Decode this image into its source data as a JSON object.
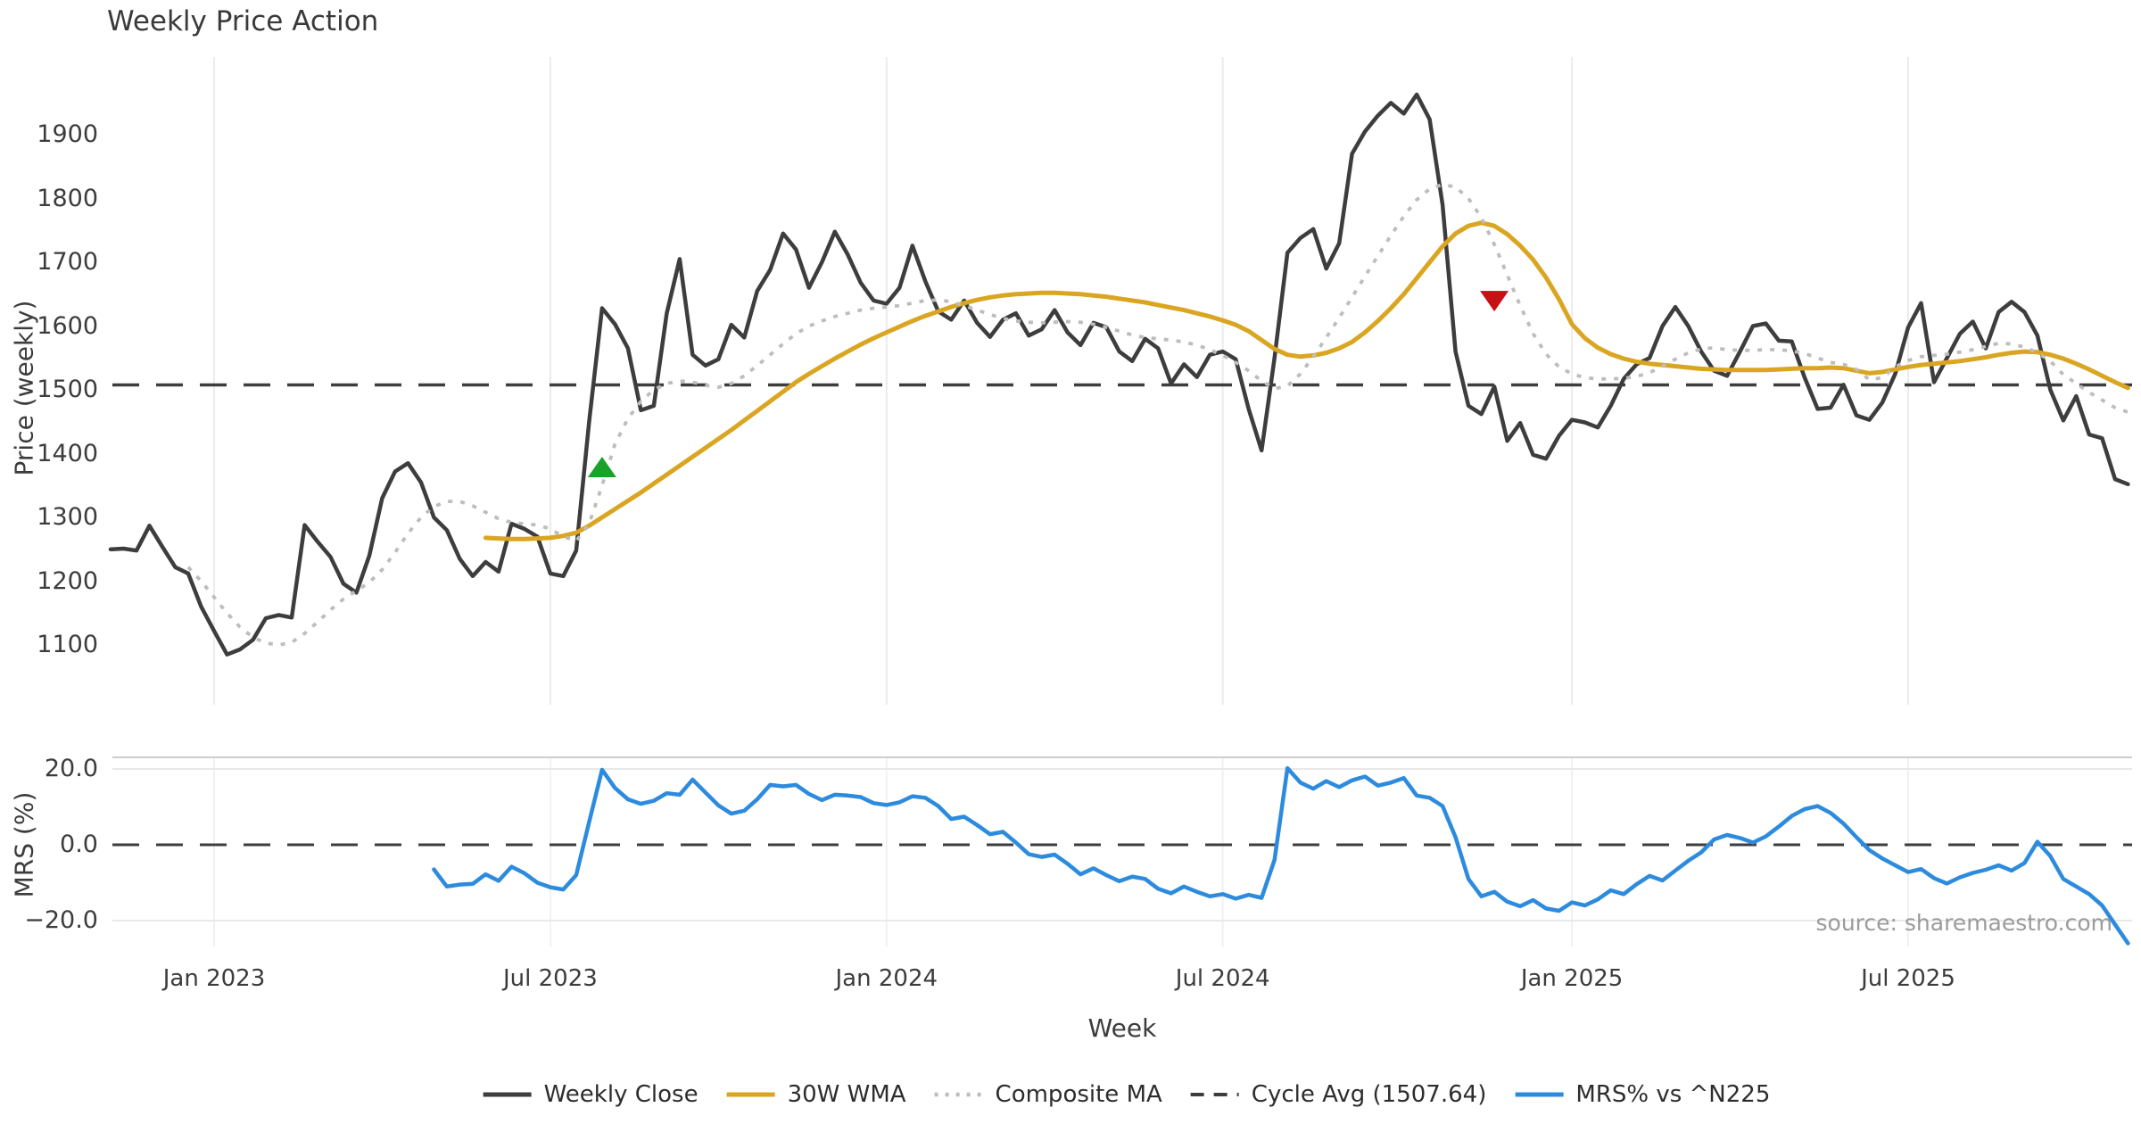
{
  "title": "Weekly Price Action",
  "source": "source: sharemaestro.com",
  "chart_data": {
    "type": "line",
    "title": "Weekly Price Action",
    "xlabel": "Week",
    "x": {
      "start_date": "2022-11-07",
      "freq": "weekly",
      "n_points": 157,
      "ticks": [
        {
          "week": 8,
          "label": "Jan 2023"
        },
        {
          "week": 34,
          "label": "Jul 2023"
        },
        {
          "week": 60,
          "label": "Jan 2024"
        },
        {
          "week": 86,
          "label": "Jul 2024"
        },
        {
          "week": 113,
          "label": "Jan 2025"
        },
        {
          "week": 139,
          "label": "Jul 2025"
        }
      ]
    },
    "panels": [
      {
        "id": "price",
        "ylabel": "Price (weekly)",
        "yticks": [
          1900,
          1800,
          1700,
          1600,
          1500,
          1400,
          1300,
          1200,
          1100
        ],
        "ytick_labels": [
          "1900",
          "1800",
          "1700",
          "1600",
          "1500",
          "1400",
          "1300",
          "1200",
          "1100"
        ],
        "ylim": [
          990,
          2030
        ],
        "grid": "vertical"
      },
      {
        "id": "mrs",
        "ylabel": "MRS (%)",
        "yticks": [
          20.0,
          0.0,
          -20.0
        ],
        "ytick_labels": [
          "20.0",
          "0.0",
          "−20.0"
        ],
        "ylim": [
          -26.5,
          23.5
        ],
        "grid": "vertical+horizontal"
      }
    ],
    "series": [
      {
        "name": "Weekly Close",
        "panel": "price",
        "color": "#3d3d3d",
        "style": "solid",
        "width": 4.5,
        "values": [
          1250,
          1251,
          1248,
          1287,
          1254,
          1222,
          1212,
          1160,
          1122,
          1085,
          1093,
          1108,
          1142,
          1147,
          1143,
          1288,
          1262,
          1238,
          1196,
          1182,
          1240,
          1330,
          1372,
          1385,
          1355,
          1300,
          1280,
          1235,
          1208,
          1230,
          1215,
          1290,
          1282,
          1270,
          1212,
          1208,
          1248,
          1450,
          1628,
          1603,
          1565,
          1468,
          1475,
          1620,
          1705,
          1555,
          1538,
          1548,
          1602,
          1582,
          1655,
          1688,
          1745,
          1720,
          1660,
          1700,
          1748,
          1712,
          1668,
          1640,
          1635,
          1660,
          1726,
          1670,
          1623,
          1610,
          1640,
          1605,
          1583,
          1610,
          1620,
          1585,
          1595,
          1625,
          1590,
          1570,
          1605,
          1598,
          1560,
          1545,
          1580,
          1565,
          1510,
          1540,
          1520,
          1555,
          1560,
          1548,
          1470,
          1405,
          1550,
          1715,
          1738,
          1752,
          1690,
          1730,
          1870,
          1905,
          1930,
          1950,
          1933,
          1963,
          1924,
          1790,
          1560,
          1475,
          1462,
          1505,
          1420,
          1448,
          1398,
          1392,
          1428,
          1453,
          1449,
          1441,
          1475,
          1517,
          1540,
          1550,
          1600,
          1630,
          1600,
          1560,
          1530,
          1522,
          1560,
          1600,
          1604,
          1577,
          1576,
          1519,
          1470,
          1472,
          1508,
          1460,
          1453,
          1480,
          1525,
          1598,
          1636,
          1512,
          1550,
          1588,
          1607,
          1565,
          1622,
          1638,
          1622,
          1585,
          1500,
          1452,
          1490,
          1430,
          1424,
          1360,
          1352
        ]
      },
      {
        "name": "30W WMA",
        "panel": "price",
        "color": "#daa520",
        "style": "solid",
        "width": 5,
        "values": [
          null,
          null,
          null,
          null,
          null,
          null,
          null,
          null,
          null,
          null,
          null,
          null,
          null,
          null,
          null,
          null,
          null,
          null,
          null,
          null,
          null,
          null,
          null,
          null,
          null,
          null,
          null,
          null,
          null,
          1268,
          1267,
          1266,
          1266,
          1267,
          1268,
          1271,
          1276,
          1287,
          1300,
          1313,
          1326,
          1339,
          1353,
          1367,
          1381,
          1395,
          1409,
          1423,
          1437,
          1452,
          1467,
          1482,
          1497,
          1512,
          1525,
          1537,
          1549,
          1560,
          1571,
          1581,
          1590,
          1599,
          1608,
          1616,
          1623,
          1630,
          1636,
          1641,
          1645,
          1648,
          1650,
          1651,
          1652,
          1652,
          1651,
          1650,
          1648,
          1646,
          1643,
          1640,
          1637,
          1633,
          1629,
          1625,
          1620,
          1615,
          1609,
          1602,
          1592,
          1578,
          1564,
          1555,
          1552,
          1554,
          1558,
          1565,
          1575,
          1590,
          1608,
          1628,
          1650,
          1675,
          1700,
          1725,
          1745,
          1757,
          1762,
          1757,
          1744,
          1726,
          1704,
          1676,
          1642,
          1603,
          1581,
          1566,
          1556,
          1549,
          1544,
          1541,
          1539,
          1537,
          1535,
          1533,
          1532,
          1531,
          1531,
          1531,
          1531,
          1532,
          1533,
          1534,
          1534,
          1535,
          1534,
          1530,
          1526,
          1528,
          1532,
          1536,
          1539,
          1541,
          1543,
          1545,
          1548,
          1551,
          1555,
          1558,
          1560,
          1559,
          1555,
          1549,
          1541,
          1532,
          1522,
          1512,
          1503
        ]
      },
      {
        "name": "Composite MA",
        "panel": "price",
        "color": "#bdbdbd",
        "style": "dotted",
        "width": 3.8,
        "values": [
          null,
          null,
          null,
          null,
          null,
          null,
          1222,
          1200,
          1175,
          1150,
          1128,
          1112,
          1103,
          1100,
          1104,
          1118,
          1136,
          1155,
          1172,
          1185,
          1198,
          1218,
          1245,
          1275,
          1300,
          1317,
          1325,
          1325,
          1318,
          1308,
          1298,
          1292,
          1290,
          1288,
          1282,
          1270,
          1263,
          1290,
          1350,
          1415,
          1455,
          1482,
          1500,
          1510,
          1514,
          1512,
          1507,
          1504,
          1510,
          1522,
          1538,
          1555,
          1572,
          1588,
          1600,
          1608,
          1615,
          1620,
          1625,
          1628,
          1630,
          1632,
          1636,
          1640,
          1641,
          1638,
          1632,
          1625,
          1618,
          1612,
          1608,
          1606,
          1605,
          1606,
          1607,
          1606,
          1603,
          1598,
          1592,
          1586,
          1582,
          1580,
          1578,
          1575,
          1570,
          1563,
          1554,
          1543,
          1530,
          1514,
          1502,
          1506,
          1525,
          1552,
          1582,
          1613,
          1645,
          1678,
          1710,
          1742,
          1772,
          1798,
          1815,
          1822,
          1818,
          1800,
          1770,
          1728,
          1680,
          1632,
          1588,
          1556,
          1536,
          1525,
          1519,
          1517,
          1517,
          1518,
          1521,
          1527,
          1537,
          1548,
          1558,
          1564,
          1566,
          1563,
          1562,
          1562,
          1563,
          1563,
          1561,
          1557,
          1550,
          1543,
          1540,
          1532,
          1516,
          1519,
          1536,
          1546,
          1552,
          1554,
          1556,
          1559,
          1563,
          1568,
          1573,
          1572,
          1567,
          1558,
          1545,
          1524,
          1510,
          1496,
          1484,
          1472,
          1465
        ]
      },
      {
        "name": "Cycle Avg (1507.64)",
        "panel": "price",
        "color": "#3d3d3d",
        "style": "dashed",
        "width": 3.5,
        "constant": 1507.64
      },
      {
        "name": "MRS% vs ^N225",
        "panel": "mrs",
        "color": "#2d8bde",
        "style": "solid",
        "width": 4.5,
        "values": [
          null,
          null,
          null,
          null,
          null,
          null,
          null,
          null,
          null,
          null,
          null,
          null,
          null,
          null,
          null,
          null,
          null,
          null,
          null,
          null,
          null,
          null,
          null,
          null,
          null,
          -6.5,
          -11.0,
          -10.5,
          -10.3,
          -7.8,
          -9.5,
          -5.8,
          -7.5,
          -10.0,
          -11.2,
          -11.8,
          -8.0,
          6.0,
          19.8,
          15.0,
          12.0,
          10.8,
          11.6,
          13.6,
          13.2,
          17.2,
          13.8,
          10.4,
          8.2,
          9.0,
          12.0,
          15.8,
          15.4,
          15.8,
          13.4,
          11.8,
          13.2,
          13.0,
          12.6,
          11.0,
          10.5,
          11.2,
          12.8,
          12.4,
          10.2,
          6.8,
          7.4,
          5.2,
          2.8,
          3.4,
          0.6,
          -2.5,
          -3.2,
          -2.6,
          -5.0,
          -7.8,
          -6.2,
          -8.0,
          -9.6,
          -8.4,
          -9.0,
          -11.6,
          -12.8,
          -11.0,
          -12.4,
          -13.6,
          -13.0,
          -14.2,
          -13.2,
          -14.0,
          -4.0,
          20.2,
          16.4,
          14.8,
          16.8,
          15.2,
          17.0,
          18.0,
          15.6,
          16.4,
          17.6,
          13.0,
          12.4,
          10.2,
          2.0,
          -9.0,
          -13.6,
          -12.4,
          -15.0,
          -16.2,
          -14.6,
          -16.8,
          -17.4,
          -15.2,
          -16.0,
          -14.4,
          -12.0,
          -13.0,
          -10.4,
          -8.2,
          -9.4,
          -6.8,
          -4.2,
          -2.0,
          1.4,
          2.6,
          1.8,
          0.6,
          2.2,
          4.8,
          7.6,
          9.4,
          10.2,
          8.4,
          5.6,
          2.0,
          -1.4,
          -3.6,
          -5.4,
          -7.2,
          -6.4,
          -8.8,
          -10.2,
          -8.6,
          -7.4,
          -6.6,
          -5.4,
          -6.8,
          -4.8,
          0.8,
          -3.0,
          -9.0,
          -11.0,
          -13.0,
          -16.0,
          -21.0,
          -26.0
        ]
      }
    ],
    "markers": [
      {
        "kind": "buy-signal",
        "shape": "triangle-up",
        "color": "#18a228",
        "week": 38,
        "date": "2023-07-31",
        "value": 1379
      },
      {
        "kind": "sell-signal",
        "shape": "triangle-down",
        "color": "#c61115",
        "week": 107,
        "date": "2024-11-25",
        "value": 1639
      }
    ],
    "reference_lines": [
      {
        "panel": "price",
        "value": 1507.64,
        "label": "Cycle Avg (1507.64)",
        "style": "dashed"
      },
      {
        "panel": "mrs",
        "value": 0.0,
        "label": "zero line",
        "style": "dashed"
      }
    ],
    "legend_position": "bottom-center"
  }
}
